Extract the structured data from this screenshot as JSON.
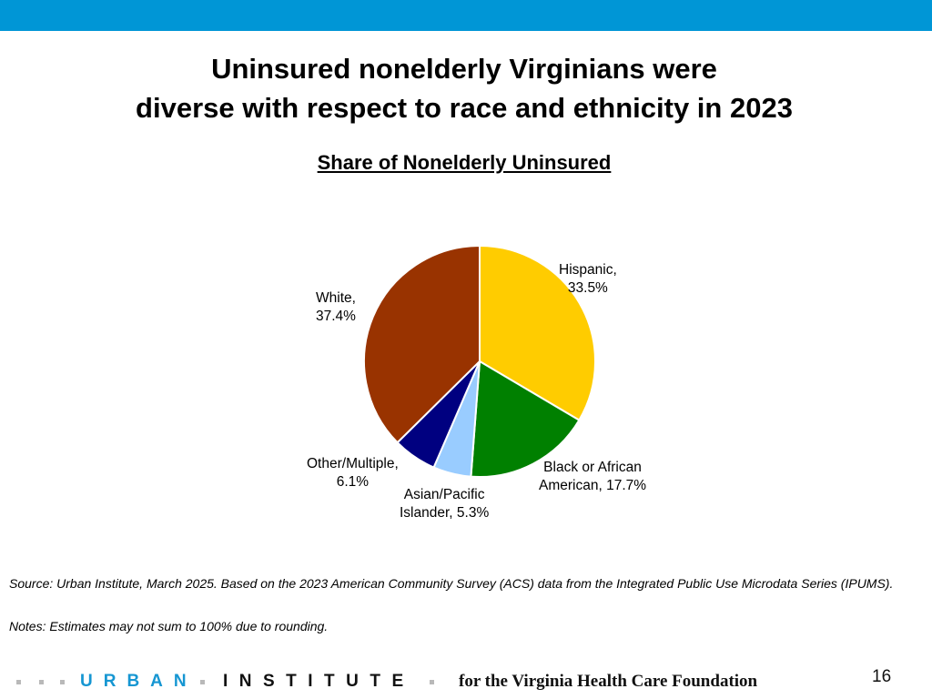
{
  "title_lines": [
    "Uninsured nonelderly Virginians were",
    "diverse with respect to race and ethnicity in 2023"
  ],
  "chart_data": {
    "type": "pie",
    "title": "Share of Nonelderly Uninsured",
    "slices": [
      {
        "name": "Hispanic",
        "value": 33.5,
        "label_lines": [
          "Hispanic,",
          "33.5%"
        ],
        "color": "#ffcc00"
      },
      {
        "name": "Black or African American",
        "value": 17.7,
        "label_lines": [
          "Black or African",
          "American, 17.7%"
        ],
        "color": "#008000"
      },
      {
        "name": "Asian/Pacific Islander",
        "value": 5.3,
        "label_lines": [
          "Asian/Pacific",
          "Islander, 5.3%"
        ],
        "color": "#99ccff"
      },
      {
        "name": "Other/Multiple",
        "value": 6.1,
        "label_lines": [
          "Other/Multiple,",
          "6.1%"
        ],
        "color": "#000080"
      },
      {
        "name": "White",
        "value": 37.4,
        "label_lines": [
          "White,",
          "37.4%"
        ],
        "color": "#993300"
      }
    ],
    "start_angle": "12 o'clock",
    "direction": "clockwise",
    "legend": "none"
  },
  "source": "Source: Urban Institute, March 2025. Based on the 2023 American Community Survey (ACS) data from the Integrated Public Use Microdata Series (IPUMS).",
  "notes": "Notes: Estimates may not sum to 100% due to rounding.",
  "footer": {
    "urban": "URBAN",
    "institute": "INSTITUTE",
    "foundation": "for the Virginia Health Care Foundation",
    "page_number": "16"
  },
  "colors": {
    "top_bar": "#0096d6",
    "urban_brand": "#1696d2"
  }
}
